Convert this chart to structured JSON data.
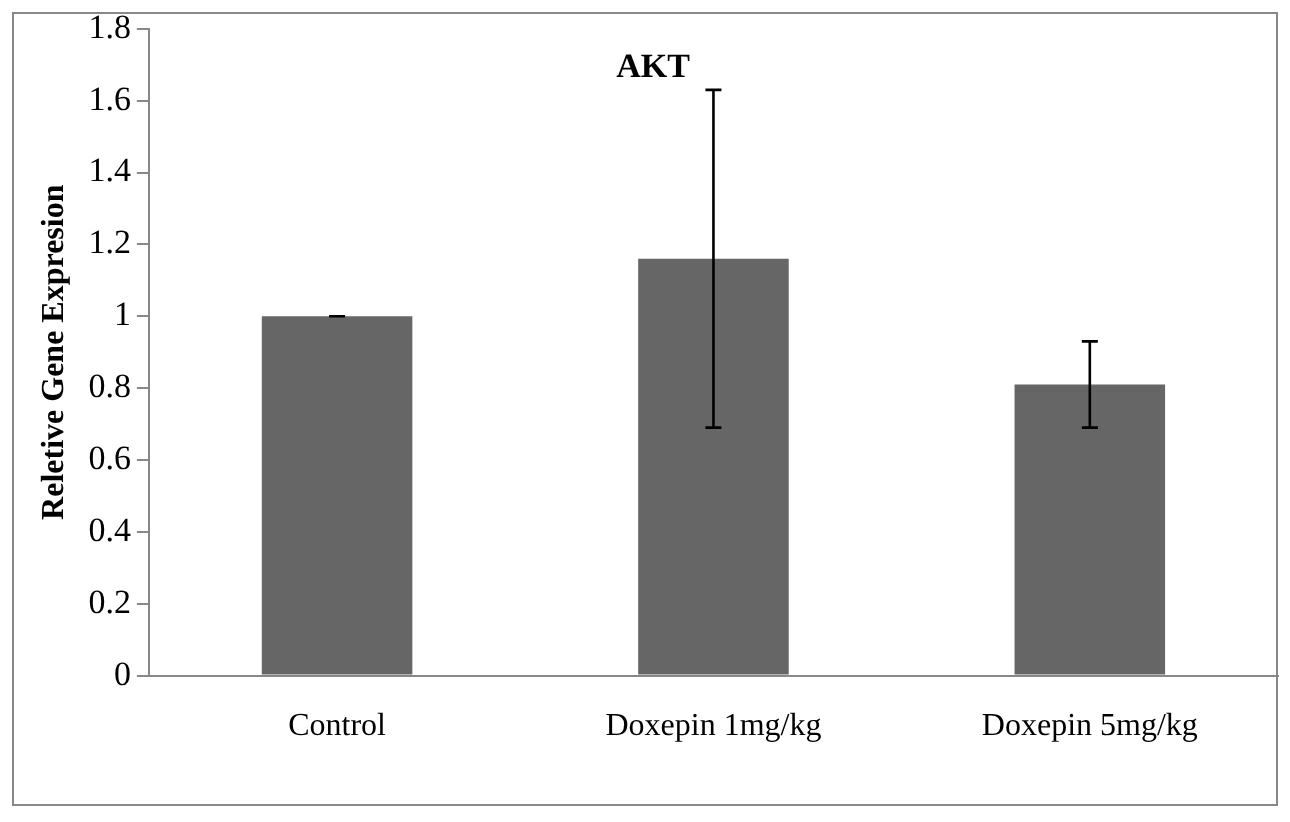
{
  "chart_data": {
    "type": "bar",
    "title": "AKT",
    "ylabel": "Reletive Gene Expresion",
    "categories": [
      "Control",
      "Doxepin 1mg/kg",
      "Doxepin 5mg/kg"
    ],
    "values": [
      1.0,
      1.16,
      0.81
    ],
    "errors": [
      0,
      [
        0.69,
        1.63
      ],
      [
        0.69,
        0.93
      ]
    ],
    "color": "#666666",
    "ylim": [
      0,
      1.8
    ],
    "yticks": [
      0,
      0.2,
      0.4,
      0.6,
      0.8,
      1,
      1.2,
      1.4,
      1.6,
      1.8
    ],
    "grid": false,
    "legend": false
  }
}
